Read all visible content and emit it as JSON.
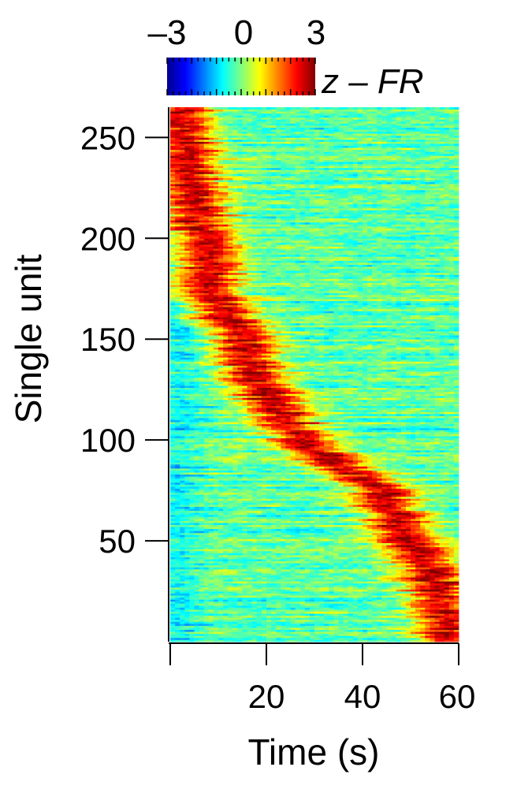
{
  "chart_data": {
    "type": "heatmap",
    "xlabel": "Time (s)",
    "ylabel": "Single unit",
    "x_ticks": [
      20,
      40,
      60
    ],
    "y_ticks": [
      50,
      100,
      150,
      200,
      250
    ],
    "xlim": [
      0,
      60
    ],
    "ylim": [
      0,
      265
    ],
    "n_units": 265,
    "colorbar": {
      "label": "z – FR",
      "ticks": [
        "–3",
        "0",
        "3"
      ],
      "range": [
        -3,
        3
      ],
      "colormap": "jet",
      "placement": "top"
    },
    "peak_time_trend": [
      {
        "unit": 265,
        "time": 2
      },
      {
        "unit": 250,
        "time": 3
      },
      {
        "unit": 220,
        "time": 5
      },
      {
        "unit": 200,
        "time": 7
      },
      {
        "unit": 180,
        "time": 8
      },
      {
        "unit": 160,
        "time": 12
      },
      {
        "unit": 150,
        "time": 16
      },
      {
        "unit": 130,
        "time": 18
      },
      {
        "unit": 115,
        "time": 22
      },
      {
        "unit": 100,
        "time": 28
      },
      {
        "unit": 90,
        "time": 34
      },
      {
        "unit": 75,
        "time": 44
      },
      {
        "unit": 60,
        "time": 47
      },
      {
        "unit": 45,
        "time": 52
      },
      {
        "unit": 30,
        "time": 55
      },
      {
        "unit": 10,
        "time": 58
      }
    ]
  }
}
